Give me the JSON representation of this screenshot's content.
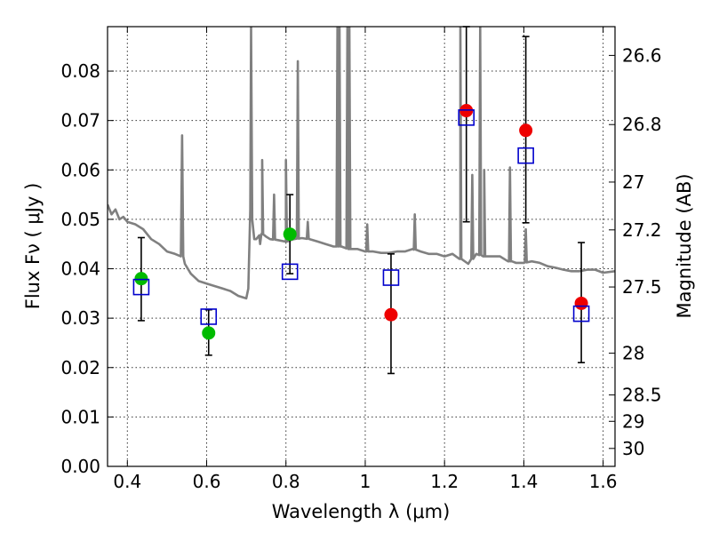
{
  "chart_data": {
    "type": "scatter",
    "xlabel": "Wavelength  λ (μm)",
    "ylabel": "Flux  Fν  ( μJy )",
    "y2label": "Magnitude (AB)",
    "xlim": [
      0.35,
      1.63
    ],
    "ylim": [
      0.0,
      0.089
    ],
    "x_ticks": [
      0.4,
      0.6,
      0.8,
      1.0,
      1.2,
      1.4,
      1.6
    ],
    "x_tick_labels": [
      "0.4",
      "0.6",
      "0.8",
      "1",
      "1.2",
      "1.4",
      "1.6"
    ],
    "y_ticks": [
      0.0,
      0.01,
      0.02,
      0.03,
      0.04,
      0.05,
      0.06,
      0.07,
      0.08
    ],
    "y_tick_labels": [
      "0.00",
      "0.01",
      "0.02",
      "0.03",
      "0.04",
      "0.05",
      "0.06",
      "0.07",
      "0.08"
    ],
    "y2_ticks": [
      26.6,
      26.8,
      27.0,
      27.2,
      27.5,
      28.0,
      28.5,
      29.0,
      30.0
    ],
    "y2_tick_labels": [
      "26.6",
      "26.8",
      "27",
      "27.2",
      "27.5",
      "28",
      "28.5",
      "29",
      "30"
    ],
    "grid": true,
    "colors": {
      "spectrum": "#808080",
      "observed_green": "#00bb00",
      "observed_red": "#ee0000",
      "model_box": "#0000cc",
      "errorbar": "#000000"
    },
    "spectrum": {
      "x": [
        0.35,
        0.36,
        0.37,
        0.38,
        0.39,
        0.4,
        0.42,
        0.44,
        0.46,
        0.48,
        0.5,
        0.52,
        0.535,
        0.538,
        0.541,
        0.545,
        0.56,
        0.58,
        0.6,
        0.62,
        0.64,
        0.66,
        0.68,
        0.7,
        0.705,
        0.71,
        0.712,
        0.715,
        0.72,
        0.725,
        0.73,
        0.74,
        0.75,
        0.76,
        0.78,
        0.8,
        0.82,
        0.84,
        0.86,
        0.88,
        0.9,
        0.92,
        0.94,
        0.96,
        0.98,
        1.0,
        1.02,
        1.04,
        1.06,
        1.08,
        1.1,
        1.12,
        1.14,
        1.16,
        1.18,
        1.2,
        1.22,
        1.24,
        1.26,
        1.28,
        1.3,
        1.32,
        1.34,
        1.36,
        1.37,
        1.38,
        1.4,
        1.42,
        1.44,
        1.46,
        1.48,
        1.5,
        1.52,
        1.54,
        1.56,
        1.58,
        1.6,
        1.63
      ],
      "y": [
        0.053,
        0.051,
        0.052,
        0.05,
        0.0505,
        0.0495,
        0.049,
        0.048,
        0.046,
        0.045,
        0.0435,
        0.043,
        0.0425,
        0.067,
        0.0425,
        0.041,
        0.039,
        0.0375,
        0.037,
        0.0365,
        0.036,
        0.0355,
        0.0345,
        0.034,
        0.036,
        0.052,
        0.089,
        0.05,
        0.046,
        0.046,
        0.0465,
        0.047,
        0.0465,
        0.046,
        0.0458,
        0.0455,
        0.046,
        0.0462,
        0.046,
        0.0455,
        0.045,
        0.0445,
        0.0445,
        0.044,
        0.044,
        0.0435,
        0.0435,
        0.0432,
        0.0432,
        0.0435,
        0.0435,
        0.044,
        0.0435,
        0.043,
        0.043,
        0.0425,
        0.043,
        0.042,
        0.041,
        0.043,
        0.0425,
        0.0425,
        0.0425,
        0.0415,
        0.0415,
        0.0412,
        0.0412,
        0.0415,
        0.0412,
        0.0405,
        0.0402,
        0.0398,
        0.0395,
        0.0395,
        0.0398,
        0.0398,
        0.0392,
        0.0395
      ],
      "emission_lines": [
        {
          "x": 0.735,
          "peak": 0.045
        },
        {
          "x": 0.74,
          "peak": 0.062
        },
        {
          "x": 0.77,
          "peak": 0.055
        },
        {
          "x": 0.8,
          "peak": 0.062
        },
        {
          "x": 0.83,
          "peak": 0.082
        },
        {
          "x": 0.855,
          "peak": 0.0495
        },
        {
          "x": 0.93,
          "peak": 0.089
        },
        {
          "x": 0.935,
          "peak": 0.089
        },
        {
          "x": 0.955,
          "peak": 0.089
        },
        {
          "x": 0.96,
          "peak": 0.089
        },
        {
          "x": 1.005,
          "peak": 0.049
        },
        {
          "x": 1.125,
          "peak": 0.051
        },
        {
          "x": 1.24,
          "peak": 0.089
        },
        {
          "x": 1.27,
          "peak": 0.059
        },
        {
          "x": 1.29,
          "peak": 0.089
        },
        {
          "x": 1.3,
          "peak": 0.06
        },
        {
          "x": 1.365,
          "peak": 0.0605
        },
        {
          "x": 1.405,
          "peak": 0.048
        }
      ]
    },
    "series": [
      {
        "marker": "circle",
        "color": "#00bb00",
        "x": [
          0.435,
          0.605,
          0.81
        ],
        "y": [
          0.038,
          0.027,
          0.047
        ],
        "yerr_low": [
          0.0295,
          0.0225,
          0.039
        ],
        "yerr_high": [
          0.0463,
          0.0317,
          0.055
        ]
      },
      {
        "marker": "circle",
        "color": "#ee0000",
        "x": [
          1.065,
          1.255,
          1.405,
          1.545
        ],
        "y": [
          0.0307,
          0.072,
          0.068,
          0.033
        ],
        "yerr_low": [
          0.0188,
          0.0495,
          0.0493,
          0.021
        ],
        "yerr_high": [
          0.043,
          0.089,
          0.087,
          0.0453
        ]
      },
      {
        "marker": "open-square",
        "color": "#0000cc",
        "x": [
          0.435,
          0.605,
          0.81,
          1.065,
          1.255,
          1.405,
          1.545
        ],
        "y": [
          0.0363,
          0.0303,
          0.0394,
          0.0382,
          0.0706,
          0.0629,
          0.0309
        ]
      }
    ]
  }
}
